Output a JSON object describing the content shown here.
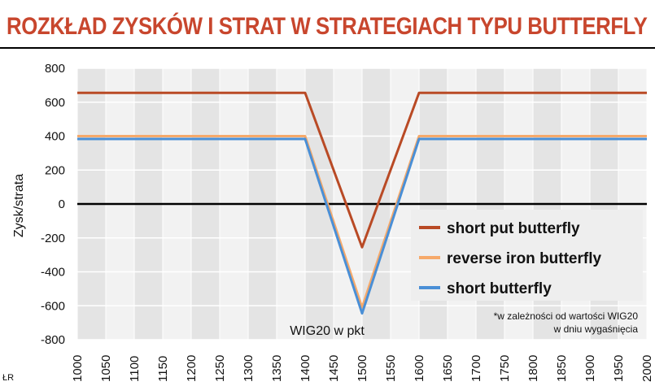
{
  "chart_data": {
    "type": "line",
    "title": "ROZKŁAD ZYSKÓW I STRAT W STRATEGIACH TYPU BUTTERFLY",
    "xlabel": "WIG20 w pkt",
    "ylabel": "Zysk/strata",
    "xlim": [
      1000,
      2000
    ],
    "ylim": [
      -800,
      800
    ],
    "x_ticks": [
      1000,
      1050,
      1100,
      1150,
      1200,
      1250,
      1300,
      1350,
      1400,
      1450,
      1500,
      1550,
      1600,
      1650,
      1700,
      1750,
      1800,
      1850,
      1900,
      1950,
      2000
    ],
    "y_ticks": [
      800,
      600,
      400,
      200,
      0,
      -200,
      -400,
      -600,
      -800
    ],
    "grid": true,
    "legend_position": "right",
    "series": [
      {
        "name": "short put butterfly",
        "color": "#b94a25",
        "points": [
          [
            1000,
            655
          ],
          [
            1400,
            655
          ],
          [
            1500,
            -255
          ],
          [
            1600,
            655
          ],
          [
            2000,
            655
          ]
        ]
      },
      {
        "name": "reverse iron butterfly",
        "color": "#f6a96a",
        "points": [
          [
            1000,
            400
          ],
          [
            1400,
            400
          ],
          [
            1500,
            -610
          ],
          [
            1600,
            400
          ],
          [
            2000,
            400
          ]
        ]
      },
      {
        "name": "short butterfly",
        "color": "#4a8fd6",
        "points": [
          [
            1000,
            383
          ],
          [
            1400,
            383
          ],
          [
            1500,
            -645
          ],
          [
            1600,
            383
          ],
          [
            2000,
            383
          ]
        ]
      }
    ],
    "note": [
      "*w zależności od wartości WIG20",
      "w dniu wygaśnięcia"
    ],
    "source": "ŁR"
  }
}
